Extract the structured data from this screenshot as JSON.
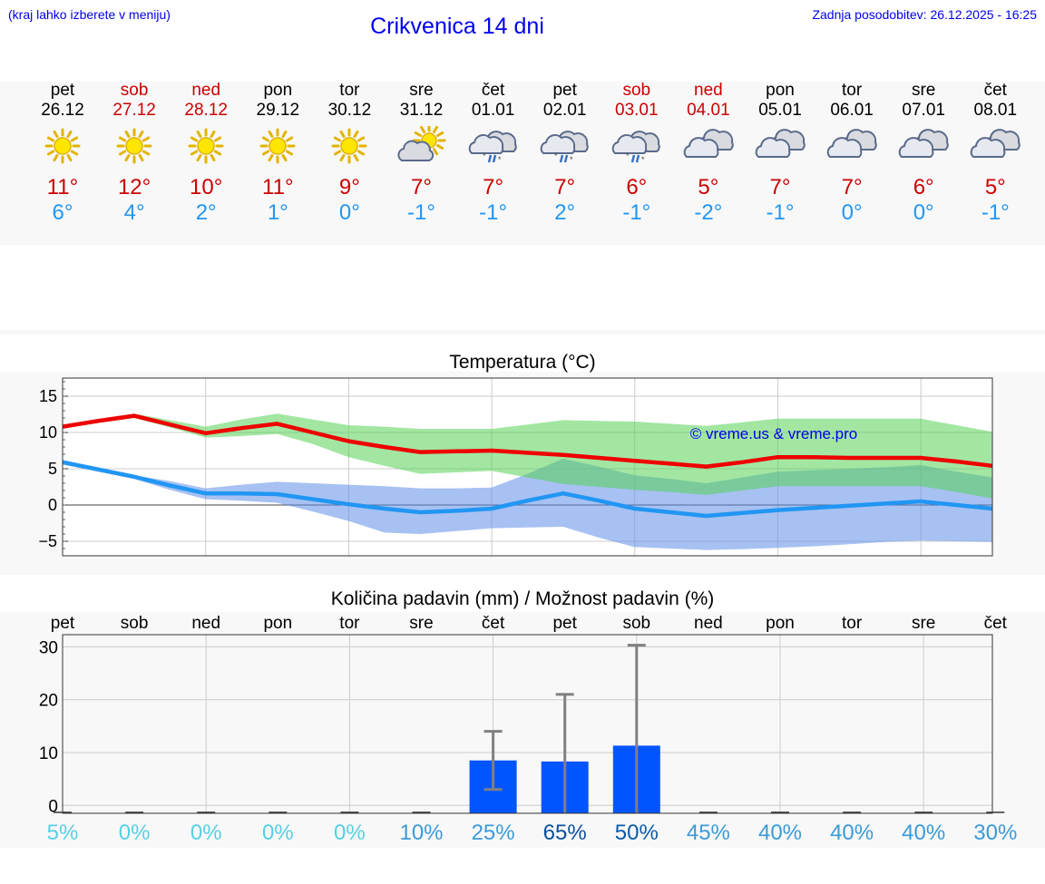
{
  "header": {
    "hint": "(kraj lahko izberete v meniju)",
    "title": "Crikvenica 14 dni",
    "updated": "Zadnja posodobitev: 26.12.2025 - 16:25"
  },
  "forecast": [
    {
      "wd": "pet",
      "date": "26.12",
      "icon": "sun-icon",
      "max": "11°",
      "min": "6°",
      "weekend": false
    },
    {
      "wd": "sob",
      "date": "27.12",
      "icon": "sun-icon",
      "max": "12°",
      "min": "4°",
      "weekend": true
    },
    {
      "wd": "ned",
      "date": "28.12",
      "icon": "sun-icon",
      "max": "10°",
      "min": "2°",
      "weekend": true
    },
    {
      "wd": "pon",
      "date": "29.12",
      "icon": "sun-icon",
      "max": "11°",
      "min": "1°",
      "weekend": false
    },
    {
      "wd": "tor",
      "date": "30.12",
      "icon": "sun-icon",
      "max": "9°",
      "min": "0°",
      "weekend": false
    },
    {
      "wd": "sre",
      "date": "31.12",
      "icon": "partly-cloudy-icon",
      "max": "7°",
      "min": "-1°",
      "weekend": false
    },
    {
      "wd": "čet",
      "date": "01.01",
      "icon": "rain-snow-icon",
      "max": "7°",
      "min": "-1°",
      "weekend": false
    },
    {
      "wd": "pet",
      "date": "02.01",
      "icon": "rain-snow-icon",
      "max": "7°",
      "min": "2°",
      "weekend": false
    },
    {
      "wd": "sob",
      "date": "03.01",
      "icon": "rain-snow-icon",
      "max": "6°",
      "min": "-1°",
      "weekend": true
    },
    {
      "wd": "ned",
      "date": "04.01",
      "icon": "cloud-icon",
      "max": "5°",
      "min": "-2°",
      "weekend": true
    },
    {
      "wd": "pon",
      "date": "05.01",
      "icon": "cloud-icon",
      "max": "7°",
      "min": "-1°",
      "weekend": false
    },
    {
      "wd": "tor",
      "date": "06.01",
      "icon": "cloud-icon",
      "max": "7°",
      "min": "0°",
      "weekend": false
    },
    {
      "wd": "sre",
      "date": "07.01",
      "icon": "cloud-icon",
      "max": "6°",
      "min": "0°",
      "weekend": false
    },
    {
      "wd": "čet",
      "date": "08.01",
      "icon": "cloud-icon",
      "max": "5°",
      "min": "-1°",
      "weekend": false
    }
  ],
  "colors": {
    "max": "#cc0000",
    "min": "#2196f3",
    "weekend": "#cc0000",
    "link": "#0000ee"
  },
  "chart_data": [
    {
      "type": "line",
      "title": "Temperatura (°C)",
      "ylim": [
        -7,
        17.5
      ],
      "yticks": [
        -5,
        0,
        5,
        10,
        15
      ],
      "ytick_labels": [
        "−5",
        "0",
        "5",
        "10",
        "15"
      ],
      "annotation": "© vreme.us & vreme.pro",
      "x": [
        0,
        0.5,
        1,
        1.5,
        2,
        2.5,
        3,
        3.5,
        4,
        4.5,
        5,
        5.5,
        6,
        6.5,
        7,
        7.5,
        8,
        8.5,
        9,
        9.5,
        10,
        10.5,
        11,
        11.5,
        12,
        12.5,
        13
      ],
      "series": [
        {
          "name": "max",
          "color": "#ee0000",
          "values": [
            10.8,
            11.6,
            12.3,
            11.1,
            9.9,
            10.6,
            11.2,
            10.0,
            8.8,
            8.0,
            7.3,
            7.4,
            7.5,
            7.2,
            6.9,
            6.5,
            6.1,
            5.7,
            5.3,
            5.9,
            6.6,
            6.6,
            6.5,
            6.5,
            6.5,
            6.0,
            5.4
          ],
          "upper": [
            10.9,
            11.8,
            12.6,
            11.7,
            10.8,
            11.8,
            12.6,
            11.8,
            11.0,
            10.8,
            10.5,
            10.5,
            10.5,
            11.1,
            11.7,
            11.6,
            11.5,
            11.2,
            10.9,
            11.4,
            11.9,
            11.9,
            11.9,
            11.9,
            11.9,
            11.0,
            10.1
          ],
          "lower": [
            10.6,
            11.3,
            12.0,
            10.7,
            9.3,
            9.5,
            9.8,
            8.4,
            6.6,
            5.4,
            4.3,
            4.5,
            4.7,
            3.8,
            2.9,
            2.5,
            2.1,
            1.8,
            1.4,
            2.0,
            2.6,
            2.6,
            2.6,
            2.6,
            2.6,
            1.8,
            0.9
          ]
        },
        {
          "name": "min",
          "color": "#2196f3",
          "values": [
            5.9,
            4.9,
            3.9,
            2.7,
            1.6,
            1.6,
            1.5,
            0.8,
            0.1,
            -0.5,
            -1.0,
            -0.8,
            -0.5,
            0.6,
            1.6,
            0.6,
            -0.5,
            -1.0,
            -1.5,
            -1.1,
            -0.7,
            -0.4,
            -0.1,
            0.2,
            0.5,
            0.0,
            -0.5
          ],
          "upper": [
            6.2,
            5.2,
            4.1,
            3.3,
            2.3,
            2.8,
            3.2,
            3.0,
            2.8,
            2.6,
            2.3,
            2.3,
            2.4,
            4.3,
            6.4,
            5.3,
            4.1,
            3.6,
            3.0,
            3.8,
            4.6,
            4.8,
            5.0,
            5.2,
            5.5,
            4.6,
            3.8
          ],
          "lower": [
            5.6,
            4.6,
            3.6,
            2.1,
            0.8,
            0.6,
            0.3,
            -0.9,
            -2.2,
            -3.8,
            -4.0,
            -3.6,
            -3.2,
            -3.1,
            -3.0,
            -4.5,
            -5.8,
            -6.0,
            -6.2,
            -6.1,
            -5.9,
            -5.7,
            -5.4,
            -5.1,
            -4.9,
            -5.0,
            -5.1
          ]
        }
      ]
    },
    {
      "type": "bar",
      "title": "Količina padavin (mm) / Možnost padavin (%)",
      "categories": [
        "pet",
        "sob",
        "ned",
        "pon",
        "tor",
        "sre",
        "čet",
        "pet",
        "sob",
        "ned",
        "pon",
        "tor",
        "sre",
        "čet"
      ],
      "ylim": [
        -1.5,
        32.3
      ],
      "yticks": [
        0,
        10,
        20,
        30
      ],
      "values": [
        0,
        0,
        0,
        0,
        0,
        0,
        8.5,
        8.3,
        11.3,
        0,
        0,
        0,
        0,
        0
      ],
      "err_low": [
        null,
        null,
        null,
        null,
        null,
        null,
        3,
        null,
        null,
        null,
        null,
        null,
        null,
        null
      ],
      "err_high": [
        null,
        null,
        null,
        null,
        null,
        null,
        14,
        21,
        30.3,
        null,
        null,
        null,
        null,
        null
      ],
      "bar_color": "#0055ff",
      "probability": [
        "5%",
        "0%",
        "0%",
        "0%",
        "0%",
        "10%",
        "25%",
        "65%",
        "50%",
        "45%",
        "40%",
        "40%",
        "40%",
        "30%"
      ],
      "probability_values": [
        5,
        0,
        0,
        0,
        0,
        10,
        25,
        65,
        50,
        45,
        40,
        40,
        40,
        30
      ]
    }
  ]
}
